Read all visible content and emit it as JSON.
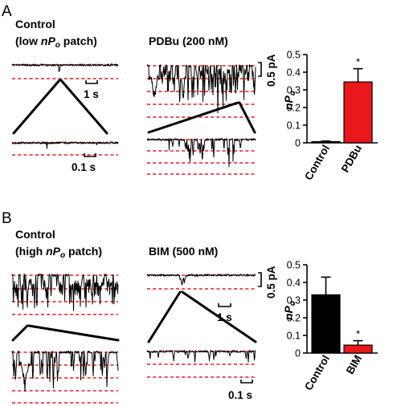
{
  "panel_a": {
    "letter": "A",
    "control_title": "Control",
    "control_subtitle_pre": "(low ",
    "control_subtitle_n": "nP",
    "control_subtitle_sub": "o",
    "control_subtitle_post": " patch)",
    "drug_title": "PDBu (200 nM)",
    "scale_time_top": "1 s",
    "scale_time_bottom": "0.1 s",
    "scale_current": "0.5 pA"
  },
  "panel_b": {
    "letter": "B",
    "control_title": "Control",
    "control_subtitle_pre": "(high ",
    "control_subtitle_n": "nP",
    "control_subtitle_sub": "o",
    "control_subtitle_post": " patch)",
    "drug_title": "BIM (500 nM)",
    "scale_time_top": "1 s",
    "scale_time_bottom": "0.1 s",
    "scale_current": "0.5 pA"
  },
  "chart_data": [
    {
      "type": "bar",
      "panel": "A",
      "categories": [
        "Control",
        "PDBu"
      ],
      "values": [
        0.007,
        0.345
      ],
      "errors": [
        0.003,
        0.075
      ],
      "colors": [
        "#000000",
        "#e8181c"
      ],
      "significance": [
        "",
        "*"
      ],
      "ylabel_main": "nP",
      "ylabel_sub": "o",
      "ylim": [
        0,
        0.5
      ],
      "yticks": [
        "0",
        "0.1",
        "0.2",
        "0.3",
        "0.4",
        "0.5"
      ]
    },
    {
      "type": "bar",
      "panel": "B",
      "categories": [
        "Control",
        "BIM"
      ],
      "values": [
        0.33,
        0.045
      ],
      "errors": [
        0.1,
        0.025
      ],
      "colors": [
        "#000000",
        "#e8181c"
      ],
      "significance": [
        "",
        "*"
      ],
      "ylabel_main": "nP",
      "ylabel_sub": "o",
      "ylim": [
        0,
        0.5
      ],
      "yticks": [
        "0",
        "0.1",
        "0.2",
        "0.3",
        "0.4",
        "0.5"
      ]
    }
  ]
}
